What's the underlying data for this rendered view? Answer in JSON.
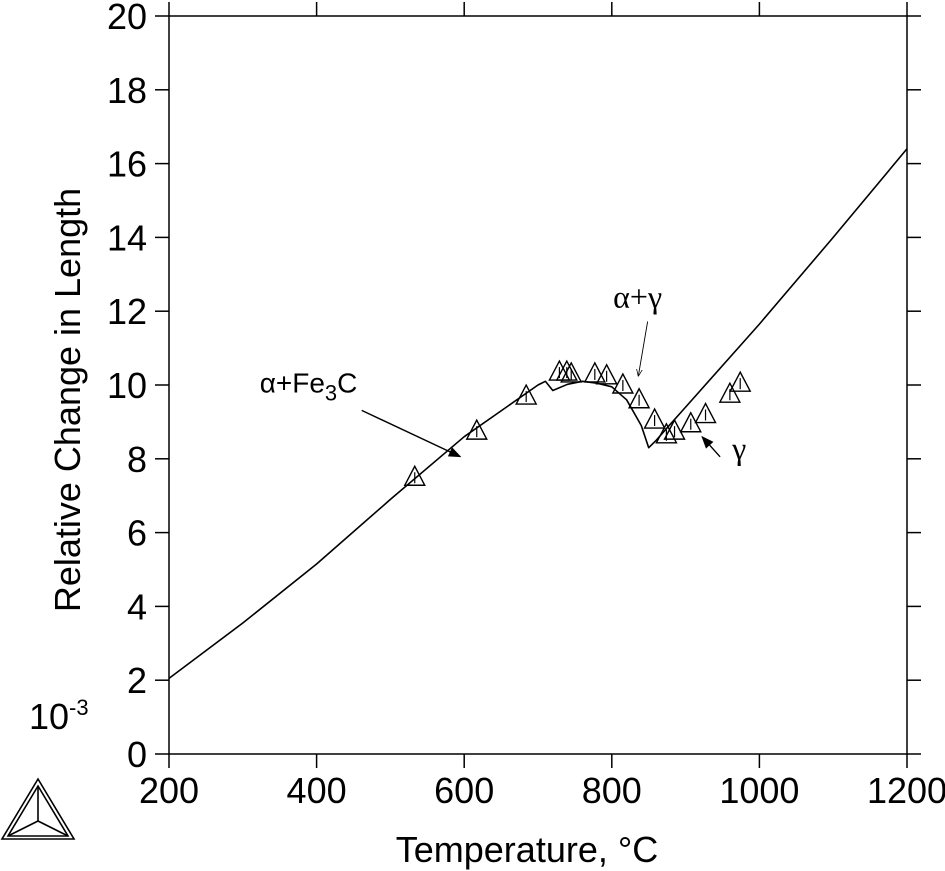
{
  "chart_data": {
    "type": "line",
    "title": "",
    "xlabel": "Temperature, °C",
    "ylabel": "Relative Change in Length",
    "y_scale_base": "10",
    "y_scale_exponent": "-3",
    "xlim": [
      200,
      1200
    ],
    "ylim": [
      0,
      20
    ],
    "x_ticks": [
      "200",
      "400",
      "600",
      "800",
      "1000",
      "1200"
    ],
    "y_ticks": [
      "0",
      "2",
      "4",
      "6",
      "8",
      "10",
      "12",
      "14",
      "16",
      "18",
      "20"
    ],
    "grid": false,
    "series": [
      {
        "style": "line",
        "x": [
          200,
          300,
          400,
          500,
          600,
          700,
          710,
          720,
          740,
          760,
          780,
          800,
          820,
          840,
          850,
          860,
          880,
          900,
          1000,
          1100,
          1200
        ],
        "y": [
          2.05,
          3.55,
          5.15,
          6.9,
          8.6,
          10.0,
          10.1,
          9.85,
          10.02,
          10.1,
          10.05,
          9.95,
          9.6,
          8.9,
          8.3,
          8.5,
          8.95,
          9.4,
          11.65,
          14.0,
          16.4
        ]
      },
      {
        "style": "triangle-markers",
        "x": [
          533,
          617,
          684,
          729,
          739,
          745,
          777,
          793,
          815,
          837,
          858,
          874,
          885,
          907,
          927,
          960,
          974
        ],
        "y": [
          7.5,
          8.75,
          9.7,
          10.35,
          10.35,
          10.3,
          10.3,
          10.25,
          10.0,
          9.6,
          9.05,
          8.65,
          8.75,
          8.95,
          9.2,
          9.75,
          10.05
        ]
      }
    ],
    "annotations": [
      {
        "label": "α+Fe₃C",
        "text_main": "α+Fe",
        "text_sub": "3",
        "text_tail": "C",
        "x": 350,
        "y": 9.8,
        "arrow_to": [
          600,
          7.95
        ]
      },
      {
        "label": "α+γ",
        "text": "α+γ",
        "x": 835,
        "y": 12.1,
        "arrow_to": [
          836,
          10.25
        ]
      },
      {
        "label": "γ",
        "text": "γ",
        "x": 963,
        "y": 8.0,
        "arrow_to": [
          917,
          8.65
        ]
      }
    ],
    "logo_icon": "thermo-calc-triangle-logo-icon"
  }
}
